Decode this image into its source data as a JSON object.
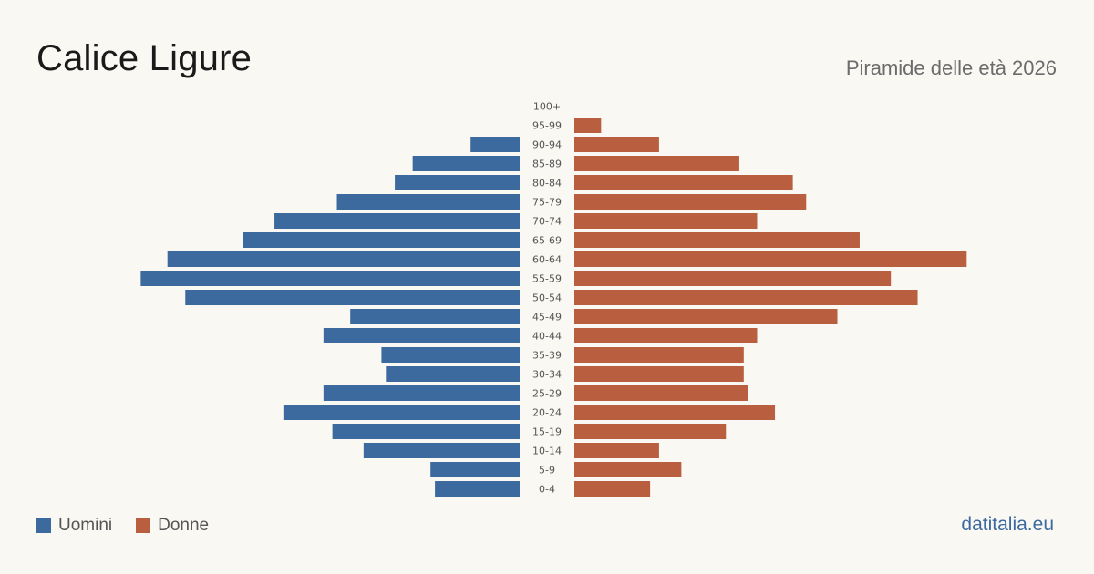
{
  "header": {
    "title": "Calice Ligure",
    "subtitle": "Piramide delle età 2026"
  },
  "legend": {
    "items": [
      {
        "label": "Uomini",
        "color": "#3c6a9e"
      },
      {
        "label": "Donne",
        "color": "#b95e3e"
      }
    ]
  },
  "footer": {
    "brand": "datitalia.eu"
  },
  "chart_data": {
    "type": "bar",
    "orientation": "horizontal-pyramid",
    "categories": [
      "100+",
      "95-99",
      "90-94",
      "85-89",
      "80-84",
      "75-79",
      "70-74",
      "65-69",
      "60-64",
      "55-59",
      "50-54",
      "45-49",
      "40-44",
      "35-39",
      "30-34",
      "25-29",
      "20-24",
      "15-19",
      "10-14",
      "5-9",
      "0-4"
    ],
    "series": [
      {
        "name": "Uomini",
        "color": "#3c6a9e",
        "values": [
          0,
          0,
          11,
          24,
          28,
          41,
          55,
          62,
          79,
          85,
          75,
          38,
          44,
          31,
          30,
          44,
          53,
          42,
          35,
          20,
          19
        ]
      },
      {
        "name": "Donne",
        "color": "#b95e3e",
        "values": [
          0,
          6,
          19,
          37,
          49,
          52,
          41,
          64,
          88,
          71,
          77,
          59,
          41,
          38,
          38,
          39,
          45,
          34,
          19,
          24,
          17
        ]
      }
    ],
    "grid": false,
    "legend_position": "bottom-left"
  }
}
